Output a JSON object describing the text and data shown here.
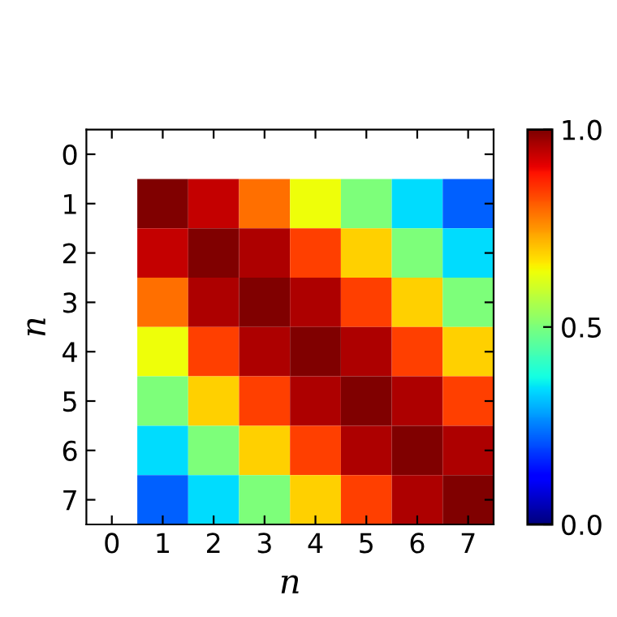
{
  "chart_data": {
    "type": "heatmap",
    "xlabel": "n",
    "ylabel": "n",
    "categories": [
      "0",
      "1",
      "2",
      "3",
      "4",
      "5",
      "6",
      "7"
    ],
    "y_categories": [
      "0",
      "1",
      "2",
      "3",
      "4",
      "5",
      "6",
      "7"
    ],
    "cells": [
      [
        null,
        null,
        null,
        null,
        null,
        null,
        null,
        null
      ],
      [
        null,
        1.0,
        0.94,
        0.79,
        0.64,
        0.5,
        0.34,
        0.22
      ],
      [
        null,
        0.94,
        1.0,
        0.96,
        0.84,
        0.69,
        0.5,
        0.34
      ],
      [
        null,
        0.79,
        0.96,
        1.0,
        0.96,
        0.84,
        0.69,
        0.5
      ],
      [
        null,
        0.64,
        0.84,
        0.96,
        1.0,
        0.96,
        0.84,
        0.69
      ],
      [
        null,
        0.5,
        0.69,
        0.84,
        0.96,
        1.0,
        0.96,
        0.84
      ],
      [
        null,
        0.34,
        0.5,
        0.69,
        0.84,
        0.96,
        1.0,
        0.96
      ],
      [
        null,
        0.22,
        0.34,
        0.5,
        0.69,
        0.84,
        0.96,
        1.0
      ]
    ],
    "clim": [
      0,
      1
    ],
    "cticks": [
      {
        "value": 0,
        "label": "0.0"
      },
      0.5,
      {
        "value": 1,
        "label": "1.0"
      }
    ],
    "grid": false
  }
}
